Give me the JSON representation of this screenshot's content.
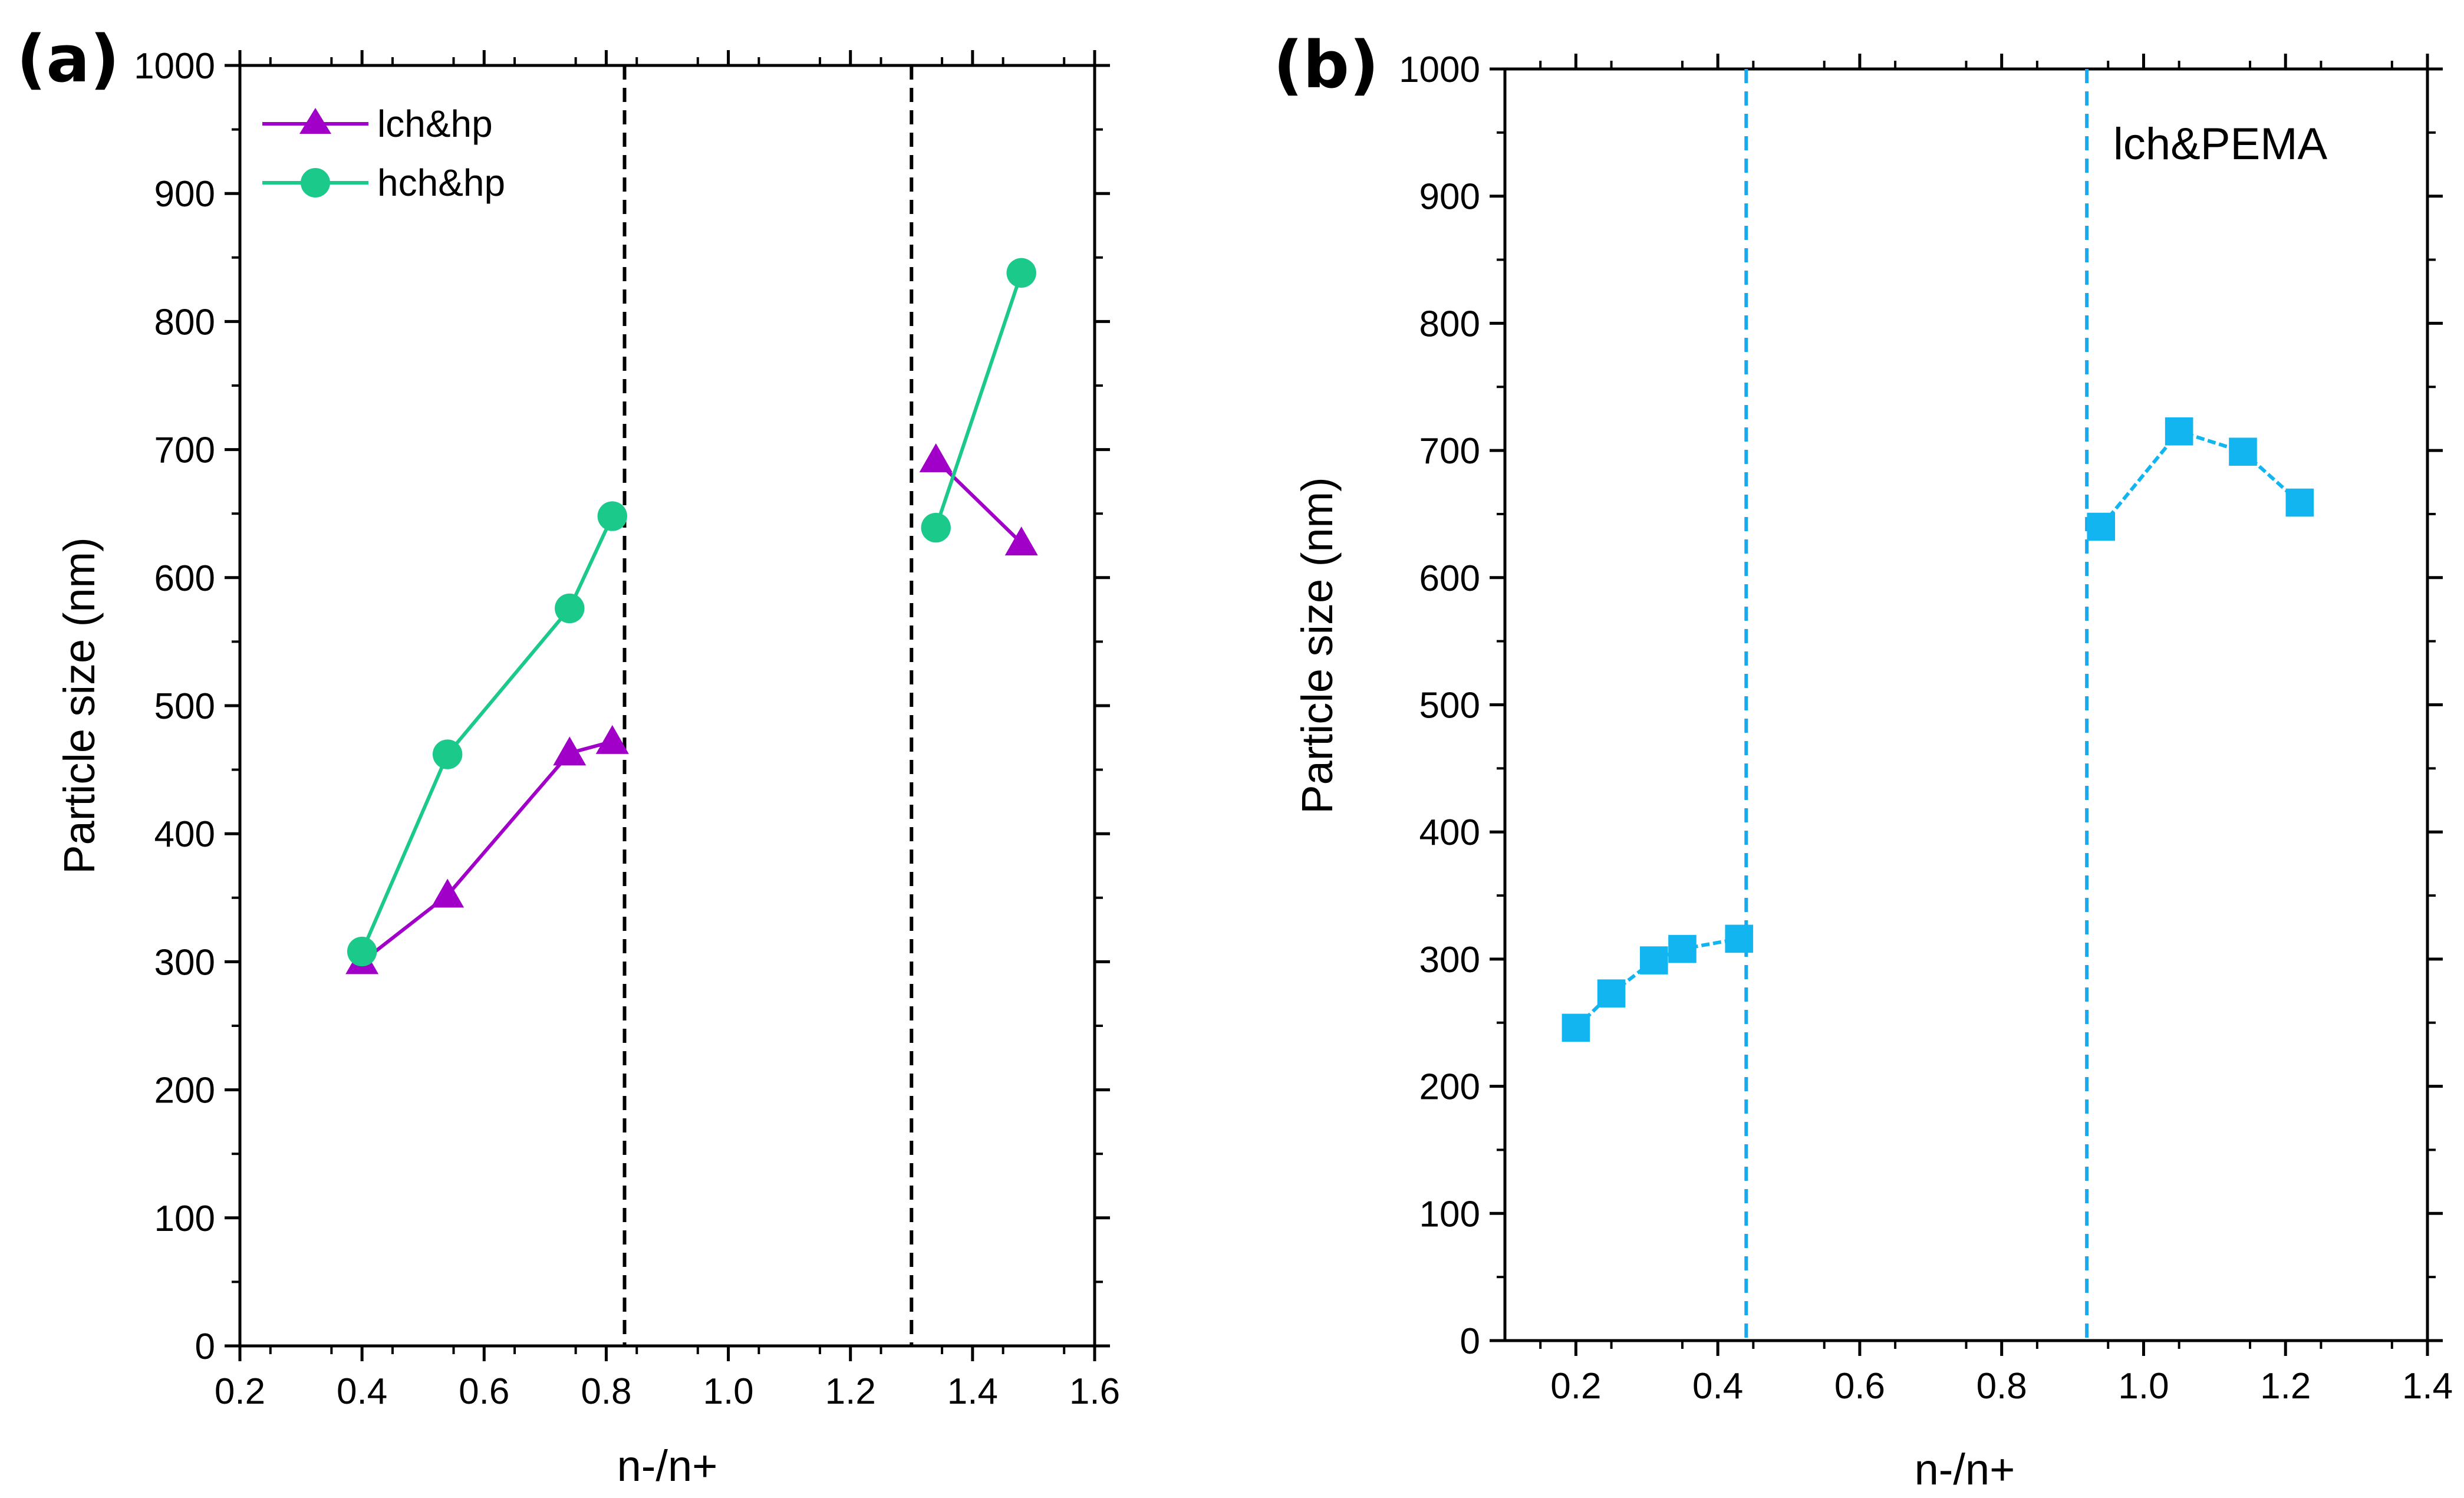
{
  "chart_data": [
    {
      "panel": "(a)",
      "type": "line",
      "xlabel": "n-/n+",
      "ylabel": "Particle size (nm)",
      "xlim": [
        0.2,
        1.6
      ],
      "ylim": [
        0,
        1000
      ],
      "xticks": [
        0.2,
        0.4,
        0.6,
        0.8,
        1.0,
        1.2,
        1.4,
        1.6
      ],
      "xtick_labels": [
        "0.2",
        "0.4",
        "0.6",
        "0.8",
        "1.0",
        "1.2",
        "1.4",
        "1.6"
      ],
      "yticks": [
        0,
        100,
        200,
        300,
        400,
        500,
        600,
        700,
        800,
        900,
        1000
      ],
      "ytick_labels": [
        "0",
        "100",
        "200",
        "300",
        "400",
        "500",
        "600",
        "700",
        "800",
        "900",
        "1000"
      ],
      "legend": {
        "position": "top-left",
        "entries": [
          "lch&hp",
          "hch&hp"
        ]
      },
      "vlines": [
        0.83,
        1.3
      ],
      "vline_color": "#000000",
      "series": [
        {
          "name": "lch&hp",
          "color": "#A100C8",
          "marker": "triangle",
          "segments": [
            {
              "x": [
                0.4,
                0.54,
                0.74,
                0.81
              ],
              "y": [
                300,
                352,
                463,
                472
              ]
            },
            {
              "x": [
                1.34,
                1.48
              ],
              "y": [
                692,
                627
              ]
            }
          ]
        },
        {
          "name": "hch&hp",
          "color": "#1BC98A",
          "marker": "circle",
          "segments": [
            {
              "x": [
                0.4,
                0.54,
                0.74,
                0.81
              ],
              "y": [
                308,
                462,
                576,
                648
              ]
            },
            {
              "x": [
                1.34,
                1.48
              ],
              "y": [
                639,
                838
              ]
            }
          ]
        }
      ]
    },
    {
      "panel": "(b)",
      "type": "line",
      "xlabel": "n-/n+",
      "ylabel": "Particle size (nm)",
      "xlim": [
        0.1,
        1.4
      ],
      "ylim": [
        0,
        1000
      ],
      "xticks": [
        0.2,
        0.4,
        0.6,
        0.8,
        1.0,
        1.2,
        1.4
      ],
      "xtick_labels": [
        "0.2",
        "0.4",
        "0.6",
        "0.8",
        "1.0",
        "1.2",
        "1.4"
      ],
      "yticks": [
        0,
        100,
        200,
        300,
        400,
        500,
        600,
        700,
        800,
        900,
        1000
      ],
      "ytick_labels": [
        "0",
        "100",
        "200",
        "300",
        "400",
        "500",
        "600",
        "700",
        "800",
        "900",
        "1000"
      ],
      "annotation": "lch&PEMA",
      "vlines": [
        0.44,
        0.92
      ],
      "vline_color": "#1AA7EC",
      "series": [
        {
          "name": "lch&PEMA",
          "color": "#12B5F0",
          "marker": "square",
          "segments": [
            {
              "x": [
                0.2,
                0.25,
                0.31,
                0.35,
                0.43
              ],
              "y": [
                246,
                273,
                299,
                308,
                316
              ]
            },
            {
              "x": [
                0.94,
                1.05,
                1.14,
                1.22
              ],
              "y": [
                640,
                715,
                699,
                659
              ]
            }
          ]
        }
      ]
    }
  ]
}
